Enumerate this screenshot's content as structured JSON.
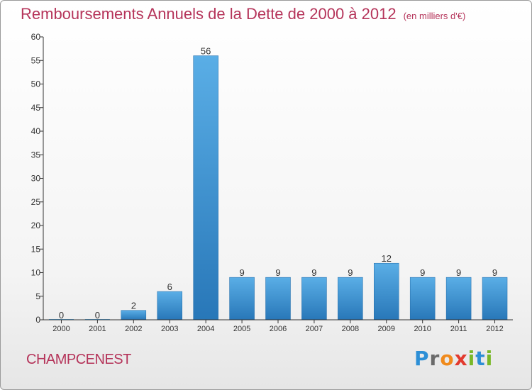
{
  "header": {
    "title": "Remboursements Annuels de la Dette de 2000 à 2012",
    "unit": "(en milliers d'€)"
  },
  "footer": {
    "commune": "CHAMPCENEST",
    "logo_letters": [
      "P",
      "r",
      "o",
      "x",
      "i",
      "t",
      "i"
    ],
    "logo_colors": [
      "#2d8fd6",
      "#6a6a6a",
      "#f08a1c",
      "#e23a2e",
      "#79b829",
      "#2d8fd6",
      "#79b829"
    ]
  },
  "colors": {
    "title": "#b5345a",
    "bar_light": "#5aaee6",
    "bar_dark": "#2877b8",
    "axis": "#333333"
  },
  "chart_data": {
    "type": "bar",
    "title": "Remboursements Annuels de la Dette de 2000 à 2012",
    "subtitle": "(en milliers d'€)",
    "xlabel": "",
    "ylabel": "",
    "categories": [
      "2000",
      "2001",
      "2002",
      "2003",
      "2004",
      "2005",
      "2006",
      "2007",
      "2008",
      "2009",
      "2010",
      "2011",
      "2012"
    ],
    "values": [
      0,
      0,
      2,
      6,
      56,
      9,
      9,
      9,
      9,
      12,
      9,
      9,
      9
    ],
    "ylim": [
      0,
      60
    ],
    "yticks": [
      0,
      5,
      10,
      15,
      20,
      25,
      30,
      35,
      40,
      45,
      50,
      55,
      60
    ],
    "grid": false
  }
}
